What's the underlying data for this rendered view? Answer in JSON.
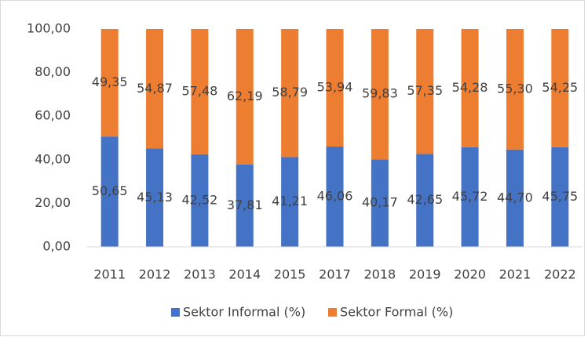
{
  "chart_data": {
    "type": "stacked_bar",
    "categories": [
      "2011",
      "2012",
      "2013",
      "2014",
      "2015",
      "2017",
      "2018",
      "2019",
      "2020",
      "2021",
      "2022"
    ],
    "series": [
      {
        "name": "Sektor Informal (%)",
        "color": "#4472c4",
        "values": [
          50.65,
          45.13,
          42.52,
          37.81,
          41.21,
          46.06,
          40.17,
          42.65,
          45.72,
          44.7,
          45.75
        ],
        "value_labels": [
          "50,65",
          "45,13",
          "42,52",
          "37,81",
          "41,21",
          "46,06",
          "40,17",
          "42,65",
          "45,72",
          "44,70",
          "45,75"
        ]
      },
      {
        "name": "Sektor Formal (%)",
        "color": "#ed7d31",
        "values": [
          49.35,
          54.87,
          57.48,
          62.19,
          58.79,
          53.94,
          59.83,
          57.35,
          54.28,
          55.3,
          54.25
        ],
        "value_labels": [
          "49,35",
          "54,87",
          "57,48",
          "62,19",
          "58,79",
          "53,94",
          "59,83",
          "57,35",
          "54,28",
          "55,30",
          "54,25"
        ]
      }
    ],
    "ylim": [
      0,
      100
    ],
    "yticks": [
      {
        "value": 0,
        "label": "0,00"
      },
      {
        "value": 20,
        "label": "20,00"
      },
      {
        "value": 40,
        "label": "40,00"
      },
      {
        "value": 60,
        "label": "60,00"
      },
      {
        "value": 80,
        "label": "80,00"
      },
      {
        "value": 100,
        "label": "100,00"
      }
    ],
    "grid": false,
    "legend": "bottom"
  }
}
